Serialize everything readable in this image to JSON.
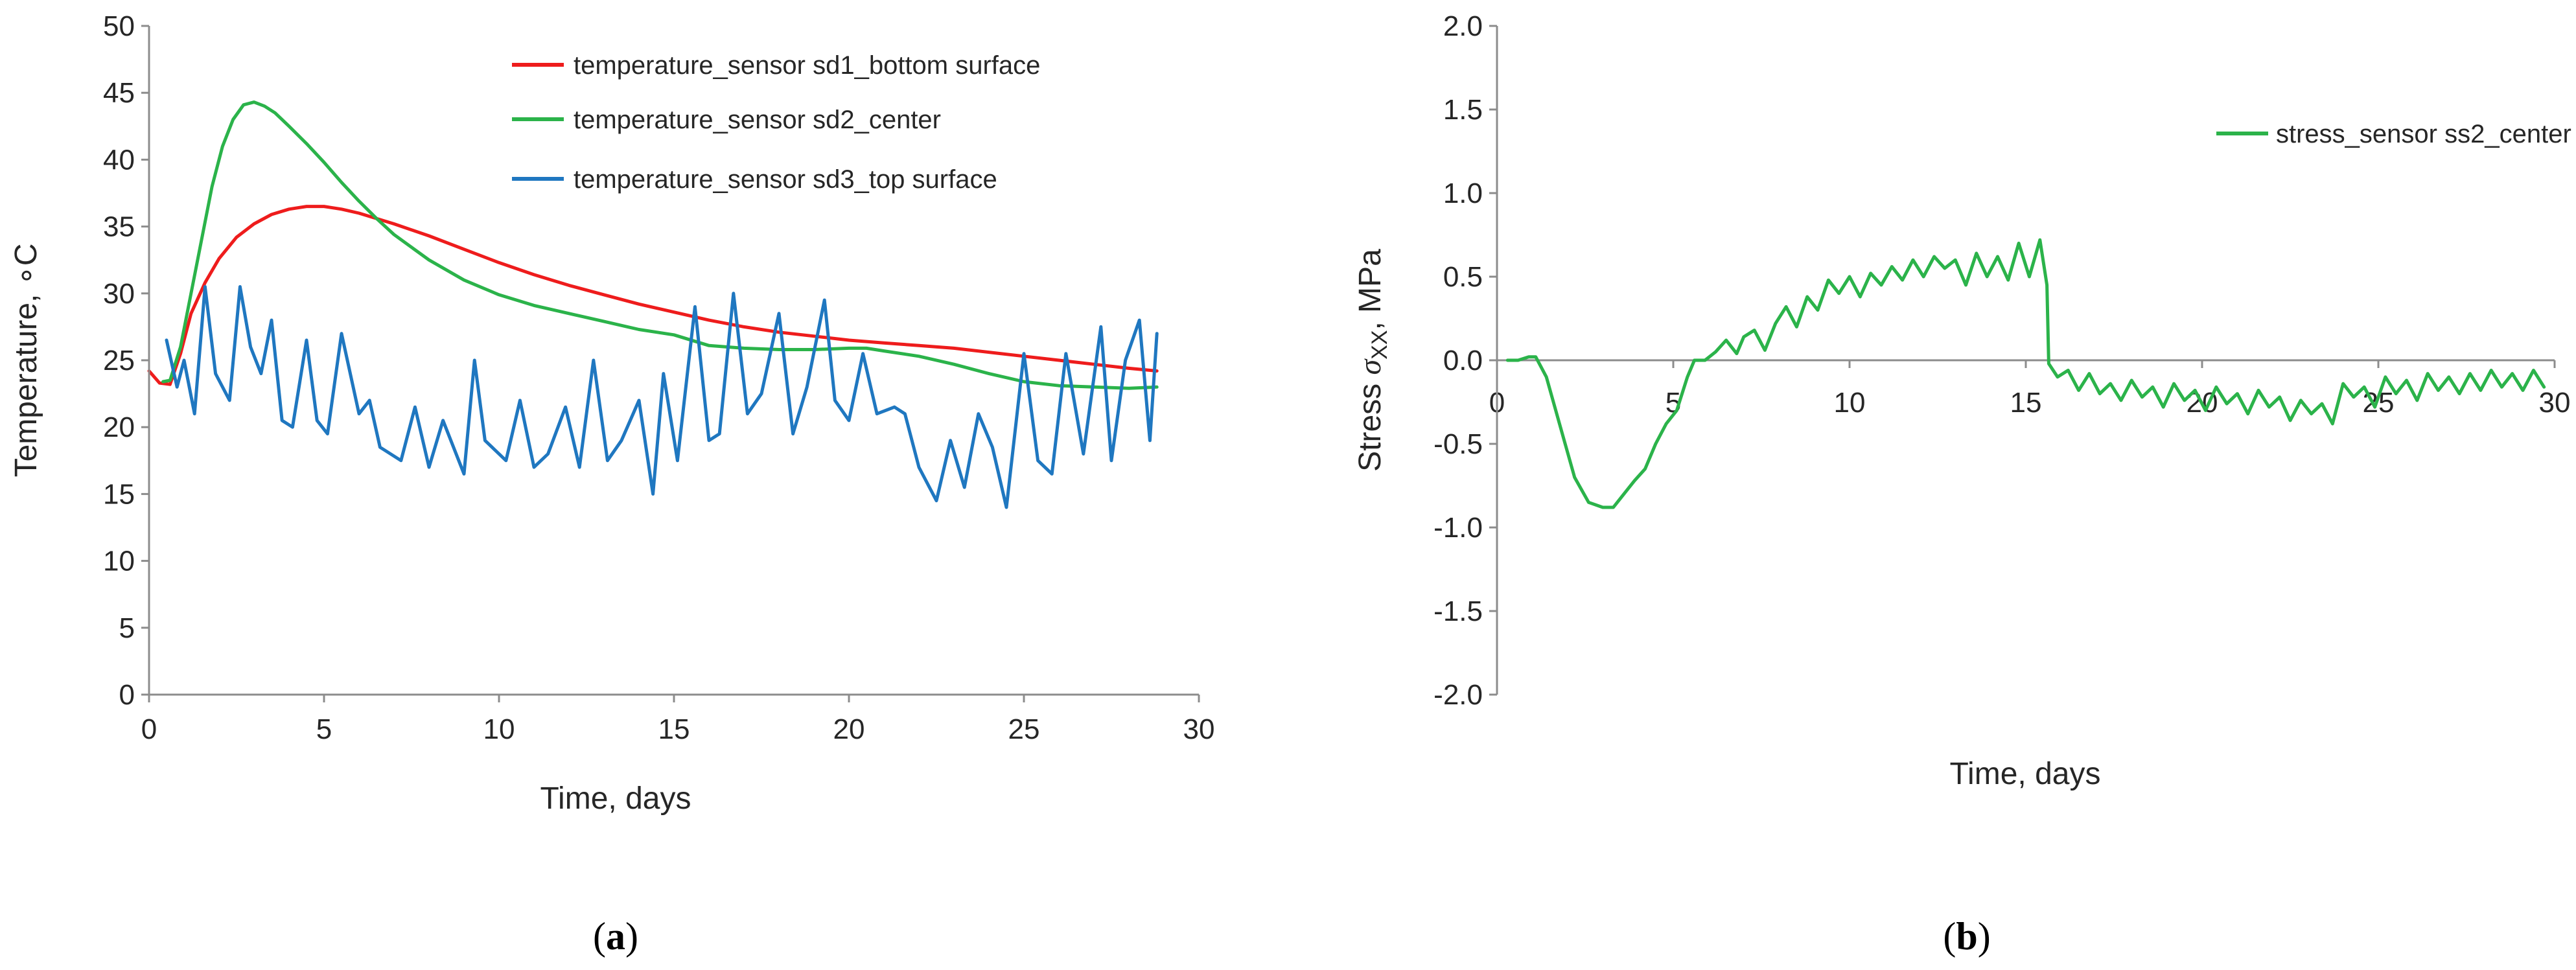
{
  "chart_data": [
    {
      "id": "a",
      "type": "line",
      "panel_label": "a",
      "xlabel": "Time, days",
      "ylabel": "Temperature, ∘C",
      "xlim": [
        0,
        30
      ],
      "ylim": [
        0,
        50
      ],
      "xticks": [
        0,
        5,
        10,
        15,
        20,
        25,
        30
      ],
      "yticks": [
        0,
        5,
        10,
        15,
        20,
        25,
        30,
        35,
        40,
        45,
        50
      ],
      "legend_position": "top-right",
      "series": [
        {
          "name": "temperature_sensor sd1_bottom surface",
          "color": "#ee1c1c",
          "x": [
            0,
            0.3,
            0.6,
            0.9,
            1.2,
            1.6,
            2,
            2.5,
            3,
            3.5,
            4,
            4.5,
            5,
            5.5,
            6,
            7,
            8,
            9,
            10,
            11,
            12,
            13,
            14,
            15,
            16,
            17,
            18,
            19,
            20,
            21,
            22,
            23,
            24,
            25,
            26,
            27,
            28,
            28.8
          ],
          "y": [
            24.2,
            23.3,
            23.2,
            25.5,
            28.5,
            30.8,
            32.6,
            34.2,
            35.2,
            35.9,
            36.3,
            36.5,
            36.5,
            36.3,
            36.0,
            35.2,
            34.3,
            33.3,
            32.3,
            31.4,
            30.6,
            29.9,
            29.2,
            28.6,
            28.0,
            27.5,
            27.1,
            26.8,
            26.5,
            26.3,
            26.1,
            25.9,
            25.6,
            25.3,
            25.0,
            24.7,
            24.4,
            24.2
          ]
        },
        {
          "name": "temperature_sensor sd2_center",
          "color": "#2bb34a",
          "x": [
            0.4,
            0.6,
            0.9,
            1.2,
            1.5,
            1.8,
            2.1,
            2.4,
            2.7,
            3,
            3.3,
            3.6,
            4,
            4.5,
            5,
            5.5,
            6,
            6.5,
            7,
            8,
            9,
            10,
            11,
            12,
            13,
            14,
            15,
            16,
            17,
            18,
            19,
            20,
            20.5,
            21,
            22,
            23,
            24,
            25,
            26,
            27,
            28,
            28.8
          ],
          "y": [
            23.4,
            23.5,
            26,
            30,
            34,
            38,
            41,
            43,
            44.1,
            44.3,
            44.0,
            43.5,
            42.5,
            41.2,
            39.8,
            38.3,
            36.9,
            35.6,
            34.4,
            32.5,
            31.0,
            29.9,
            29.1,
            28.5,
            27.9,
            27.3,
            26.9,
            26.1,
            25.9,
            25.8,
            25.8,
            25.9,
            25.9,
            25.7,
            25.3,
            24.7,
            24.0,
            23.4,
            23.1,
            23.0,
            22.9,
            23.0
          ]
        },
        {
          "name": "temperature_sensor sd3_top surface",
          "color": "#1f77c0",
          "x": [
            0.5,
            0.8,
            1.0,
            1.3,
            1.6,
            1.9,
            2.3,
            2.6,
            2.9,
            3.2,
            3.5,
            3.8,
            4.1,
            4.5,
            4.8,
            5.1,
            5.5,
            6,
            6.3,
            6.6,
            7.2,
            7.6,
            8.0,
            8.4,
            9.0,
            9.3,
            9.6,
            10.2,
            10.6,
            11.0,
            11.4,
            11.9,
            12.3,
            12.7,
            13.1,
            13.5,
            14.0,
            14.4,
            14.7,
            15.1,
            15.6,
            16.0,
            16.3,
            16.7,
            17.1,
            17.5,
            18.0,
            18.4,
            18.8,
            19.3,
            19.6,
            20.0,
            20.4,
            20.8,
            21.3,
            21.6,
            22.0,
            22.5,
            22.9,
            23.3,
            23.7,
            24.1,
            24.5,
            25.0,
            25.4,
            25.8,
            26.2,
            26.7,
            27.2,
            27.5,
            27.9,
            28.3,
            28.6,
            28.8
          ],
          "y": [
            26.5,
            23.0,
            25.0,
            21.0,
            30.5,
            24.0,
            22.0,
            30.5,
            26.0,
            24.0,
            28.0,
            20.5,
            20.0,
            26.5,
            20.5,
            19.5,
            27.0,
            21.0,
            22.0,
            18.5,
            17.5,
            21.5,
            17.0,
            20.5,
            16.5,
            25.0,
            19.0,
            17.5,
            22.0,
            17.0,
            18.0,
            21.5,
            17.0,
            25.0,
            17.5,
            19.0,
            22.0,
            15.0,
            24.0,
            17.5,
            29.0,
            19.0,
            19.5,
            30.0,
            21.0,
            22.5,
            28.5,
            19.5,
            23.0,
            29.5,
            22.0,
            20.5,
            25.5,
            21.0,
            21.5,
            21.0,
            17.0,
            14.5,
            19.0,
            15.5,
            21.0,
            18.5,
            14.0,
            25.5,
            17.5,
            16.5,
            25.5,
            18.0,
            27.5,
            17.5,
            25.0,
            28.0,
            19.0,
            27.0
          ]
        }
      ]
    },
    {
      "id": "b",
      "type": "line",
      "panel_label": "b",
      "xlabel": "Time, days",
      "ylabel_prefix": "Stress ",
      "ylabel_sigma": "σ",
      "ylabel_sub": "XX",
      "ylabel_suffix": ", MPa",
      "xlim": [
        0,
        30
      ],
      "ylim": [
        -2.0,
        2.0
      ],
      "xticks": [
        0,
        5,
        10,
        15,
        20,
        25,
        30
      ],
      "yticks": [
        2.0,
        1.5,
        1.0,
        0.5,
        0.0,
        -0.5,
        -1.0,
        -1.5,
        -2.0
      ],
      "ytick_labels": [
        "2.0",
        "1.5",
        "1.0",
        "0.5",
        "0.0",
        "-0.5",
        "-1.0",
        "-1.5",
        "-2.0"
      ],
      "legend_position": "top-right",
      "series": [
        {
          "name": "stress_sensor ss2_center",
          "color": "#2bb34a",
          "x": [
            0.3,
            0.6,
            0.9,
            1.1,
            1.4,
            1.8,
            2.2,
            2.6,
            3.0,
            3.3,
            3.6,
            3.9,
            4.2,
            4.5,
            4.8,
            5.1,
            5.4,
            5.6,
            5.9,
            6.2,
            6.5,
            6.8,
            7.0,
            7.3,
            7.6,
            7.9,
            8.2,
            8.5,
            8.8,
            9.1,
            9.4,
            9.7,
            10.0,
            10.3,
            10.6,
            10.9,
            11.2,
            11.5,
            11.8,
            12.1,
            12.4,
            12.7,
            13.0,
            13.3,
            13.6,
            13.9,
            14.2,
            14.5,
            14.8,
            15.1,
            15.4,
            15.6,
            15.65,
            15.9,
            16.2,
            16.5,
            16.8,
            17.1,
            17.4,
            17.7,
            18.0,
            18.3,
            18.6,
            18.9,
            19.2,
            19.5,
            19.8,
            20.1,
            20.4,
            20.7,
            21.0,
            21.3,
            21.6,
            21.9,
            22.2,
            22.5,
            22.8,
            23.1,
            23.4,
            23.7,
            24.0,
            24.3,
            24.6,
            24.9,
            25.2,
            25.5,
            25.8,
            26.1,
            26.4,
            26.7,
            27.0,
            27.3,
            27.6,
            27.9,
            28.2,
            28.5,
            28.8,
            29.1,
            29.4,
            29.7
          ],
          "y": [
            0.0,
            0.0,
            0.02,
            0.02,
            -0.1,
            -0.4,
            -0.7,
            -0.85,
            -0.88,
            -0.88,
            -0.8,
            -0.72,
            -0.65,
            -0.5,
            -0.38,
            -0.3,
            -0.1,
            0.0,
            0.0,
            0.05,
            0.12,
            0.04,
            0.14,
            0.18,
            0.06,
            0.22,
            0.32,
            0.2,
            0.38,
            0.3,
            0.48,
            0.4,
            0.5,
            0.38,
            0.52,
            0.45,
            0.56,
            0.48,
            0.6,
            0.5,
            0.62,
            0.55,
            0.6,
            0.45,
            0.64,
            0.5,
            0.62,
            0.48,
            0.7,
            0.5,
            0.72,
            0.45,
            -0.02,
            -0.1,
            -0.06,
            -0.18,
            -0.08,
            -0.2,
            -0.14,
            -0.24,
            -0.12,
            -0.22,
            -0.16,
            -0.28,
            -0.14,
            -0.24,
            -0.18,
            -0.3,
            -0.16,
            -0.26,
            -0.2,
            -0.32,
            -0.18,
            -0.28,
            -0.22,
            -0.36,
            -0.24,
            -0.32,
            -0.26,
            -0.38,
            -0.14,
            -0.22,
            -0.16,
            -0.28,
            -0.1,
            -0.2,
            -0.12,
            -0.24,
            -0.08,
            -0.18,
            -0.1,
            -0.2,
            -0.08,
            -0.18,
            -0.06,
            -0.16,
            -0.08,
            -0.18,
            -0.06,
            -0.16
          ]
        }
      ]
    }
  ]
}
